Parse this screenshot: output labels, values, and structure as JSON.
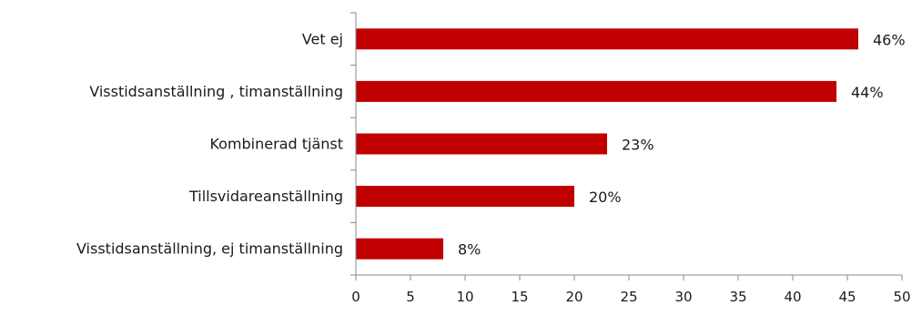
{
  "chart_data": {
    "type": "bar",
    "orientation": "horizontal",
    "categories": [
      "Vet ej",
      "Visstidsanställning , timanställning",
      "Kombinerad tjänst",
      "Tillsvidareanställning",
      "Visstidsanställning, ej timanställning"
    ],
    "values": [
      46,
      44,
      23,
      20,
      8
    ],
    "data_labels": [
      "46%",
      "44%",
      "23%",
      "20%",
      "8%"
    ],
    "xlim": [
      0,
      50
    ],
    "xticks": [
      0,
      5,
      10,
      15,
      20,
      25,
      30,
      35,
      40,
      45,
      50
    ],
    "bar_color": "#c00000",
    "grid": false,
    "legend": "none"
  }
}
